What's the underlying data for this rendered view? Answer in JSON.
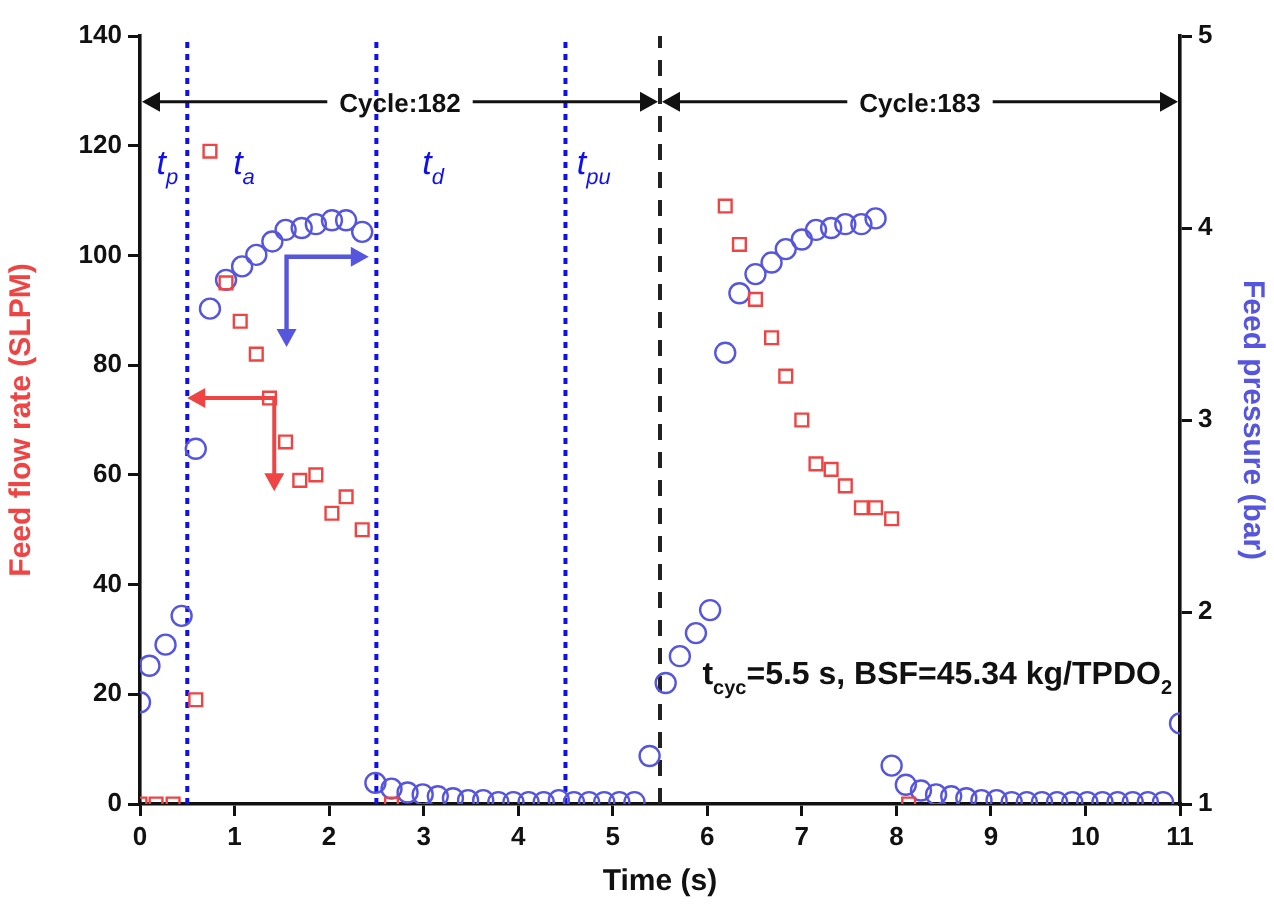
{
  "chart_data": {
    "type": "scatter",
    "xlabel": "Time (s)",
    "ylabel": "Feed flow rate (SLPM)",
    "y2label": "Feed pressure (bar)",
    "xlim": [
      0,
      11
    ],
    "xticks": [
      0,
      1,
      2,
      3,
      4,
      5,
      6,
      7,
      8,
      9,
      10,
      11
    ],
    "ylim": [
      0,
      140
    ],
    "yticks": [
      0,
      20,
      40,
      60,
      80,
      100,
      120,
      140
    ],
    "y2lim": [
      1,
      5
    ],
    "y2ticks": [
      1,
      2,
      3,
      4,
      5
    ],
    "grid": false,
    "legend": false,
    "series": [
      {
        "color": "#ee4444",
        "marker": "square",
        "x": [
          0,
          0.17,
          0.35,
          0.59,
          0.74,
          0.91,
          1.06,
          1.23,
          1.37,
          1.54,
          1.69,
          1.86,
          2.03,
          2.18,
          2.35,
          2.66,
          6.19,
          6.34,
          6.51,
          6.68,
          6.83,
          7.0,
          7.15,
          7.31,
          7.46,
          7.63,
          7.78,
          7.95,
          8.13
        ],
        "values": [
          0,
          0,
          0,
          19,
          119,
          95,
          88,
          82,
          74,
          66,
          59,
          60,
          53,
          56,
          50,
          0,
          109,
          102,
          92,
          85,
          78,
          70,
          62,
          61,
          58,
          54,
          54,
          52,
          0
        ]
      },
      {
        "color": "#5555dd",
        "marker": "circle",
        "axis": "y2",
        "x": [
          0,
          0.1,
          0.27,
          0.44,
          0.59,
          0.74,
          0.91,
          1.08,
          1.23,
          1.4,
          1.54,
          1.71,
          1.86,
          2.03,
          2.18,
          2.35,
          2.49,
          2.66,
          2.83,
          2.99,
          3.15,
          3.31,
          3.47,
          3.63,
          3.79,
          3.95,
          4.11,
          4.27,
          4.43,
          4.59,
          4.75,
          4.91,
          5.07,
          5.23,
          5.39,
          5.56,
          5.71,
          5.88,
          6.03,
          6.19,
          6.34,
          6.51,
          6.68,
          6.83,
          7.0,
          7.15,
          7.31,
          7.46,
          7.63,
          7.78,
          7.95,
          8.1,
          8.26,
          8.42,
          8.58,
          8.74,
          8.9,
          9.06,
          9.22,
          9.38,
          9.54,
          9.7,
          9.86,
          10.02,
          10.18,
          10.34,
          10.5,
          10.66,
          10.82,
          11
        ],
        "values": [
          1.53,
          1.72,
          1.83,
          1.98,
          2.85,
          3.58,
          3.73,
          3.8,
          3.86,
          3.93,
          3.99,
          4.0,
          4.02,
          4.04,
          4.04,
          3.98,
          1.11,
          1.08,
          1.06,
          1.05,
          1.04,
          1.03,
          1.02,
          1.02,
          1.01,
          1.01,
          1.01,
          1.01,
          1.02,
          1.01,
          1.01,
          1.01,
          1.01,
          1.01,
          1.25,
          1.63,
          1.77,
          1.89,
          2.01,
          3.35,
          3.66,
          3.76,
          3.82,
          3.89,
          3.94,
          3.99,
          4.0,
          4.02,
          4.02,
          4.05,
          1.2,
          1.1,
          1.07,
          1.05,
          1.04,
          1.03,
          1.02,
          1.02,
          1.01,
          1.01,
          1.01,
          1.01,
          1.01,
          1.01,
          1.01,
          1.01,
          1.01,
          1.01,
          1.01,
          1.42
        ]
      }
    ],
    "ref_lines": [
      {
        "axis": "x",
        "value": 0.5,
        "color": "#1010ee",
        "line_style": "dotted"
      },
      {
        "axis": "x",
        "value": 2.5,
        "color": "#1010ee",
        "line_style": "dotted"
      },
      {
        "axis": "x",
        "value": 4.5,
        "color": "#1010ee",
        "line_style": "dotted"
      },
      {
        "axis": "x",
        "value": 5.5,
        "color": "#222222",
        "line_style": "dashed"
      }
    ],
    "annotations": [
      "t$_{p}$",
      "t$_{a}$",
      "t$_{d}$",
      "t$_{pu}$",
      "Cycle:182",
      "Cycle:183",
      "t$_{cyc}$=5.5 s, BSF=45.34 kg/TPDO$_{2}$"
    ]
  }
}
